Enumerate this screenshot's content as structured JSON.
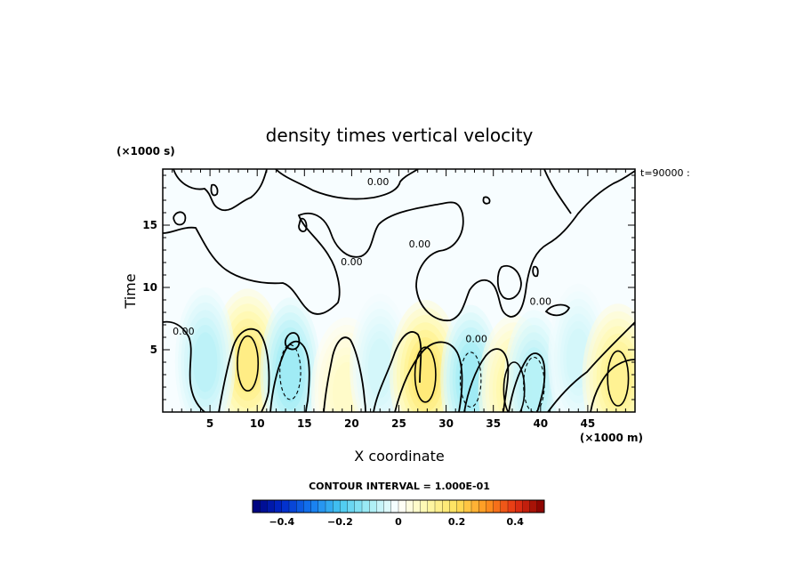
{
  "chart_data": {
    "type": "heatmap",
    "title": "density times vertical velocity",
    "xlabel": "X coordinate",
    "x_units": "(×1000 m)",
    "ylabel": "Time",
    "y_units": "(×1000 s)",
    "time_annotation": "t=90000 :",
    "xlim": [
      0,
      50
    ],
    "ylim": [
      0,
      19.5
    ],
    "x_ticks": [
      5,
      10,
      15,
      20,
      25,
      30,
      35,
      40,
      45
    ],
    "y_ticks": [
      5,
      10,
      15
    ],
    "contour_interval_label": "CONTOUR INTERVAL = 1.000E-01",
    "contour_interval": 0.1,
    "contour_labels": [
      {
        "text": "0.00",
        "x": 22.8,
        "y": 18.2
      },
      {
        "text": "0.00",
        "x": 20.0,
        "y": 11.8
      },
      {
        "text": "0.00",
        "x": 27.2,
        "y": 13.2
      },
      {
        "text": "0.00",
        "x": 33.2,
        "y": 5.6
      },
      {
        "text": "0.00",
        "x": 40.0,
        "y": 8.6
      },
      {
        "text": "0.00",
        "x": 2.2,
        "y": 6.2
      }
    ],
    "colorbar": {
      "range": [
        -0.5,
        0.5
      ],
      "tick_values": [
        -0.4,
        -0.2,
        0,
        0.2,
        0.4
      ],
      "tick_labels": [
        "−0.4",
        "−0.2",
        "0",
        "0.2",
        "0.4"
      ]
    },
    "features": [
      {
        "kind": "positive",
        "x": 9.0,
        "y": 3.9,
        "peak": 0.18
      },
      {
        "kind": "negative",
        "x": 4.5,
        "y": 4.0,
        "peak": -0.09
      },
      {
        "kind": "negative",
        "x": 13.5,
        "y": 3.2,
        "peak": -0.13
      },
      {
        "kind": "positive",
        "x": 19.5,
        "y": 1.6,
        "peak": 0.08
      },
      {
        "kind": "negative",
        "x": 23.0,
        "y": 3.5,
        "peak": -0.06
      },
      {
        "kind": "positive",
        "x": 27.8,
        "y": 3.0,
        "peak": 0.2
      },
      {
        "kind": "negative",
        "x": 32.6,
        "y": 2.6,
        "peak": -0.13
      },
      {
        "kind": "positive",
        "x": 37.2,
        "y": 1.8,
        "peak": 0.13
      },
      {
        "kind": "negative",
        "x": 39.3,
        "y": 2.2,
        "peak": -0.1
      },
      {
        "kind": "negative",
        "x": 44.0,
        "y": 4.3,
        "peak": -0.06
      },
      {
        "kind": "positive",
        "x": 48.2,
        "y": 2.7,
        "peak": 0.16
      }
    ]
  }
}
